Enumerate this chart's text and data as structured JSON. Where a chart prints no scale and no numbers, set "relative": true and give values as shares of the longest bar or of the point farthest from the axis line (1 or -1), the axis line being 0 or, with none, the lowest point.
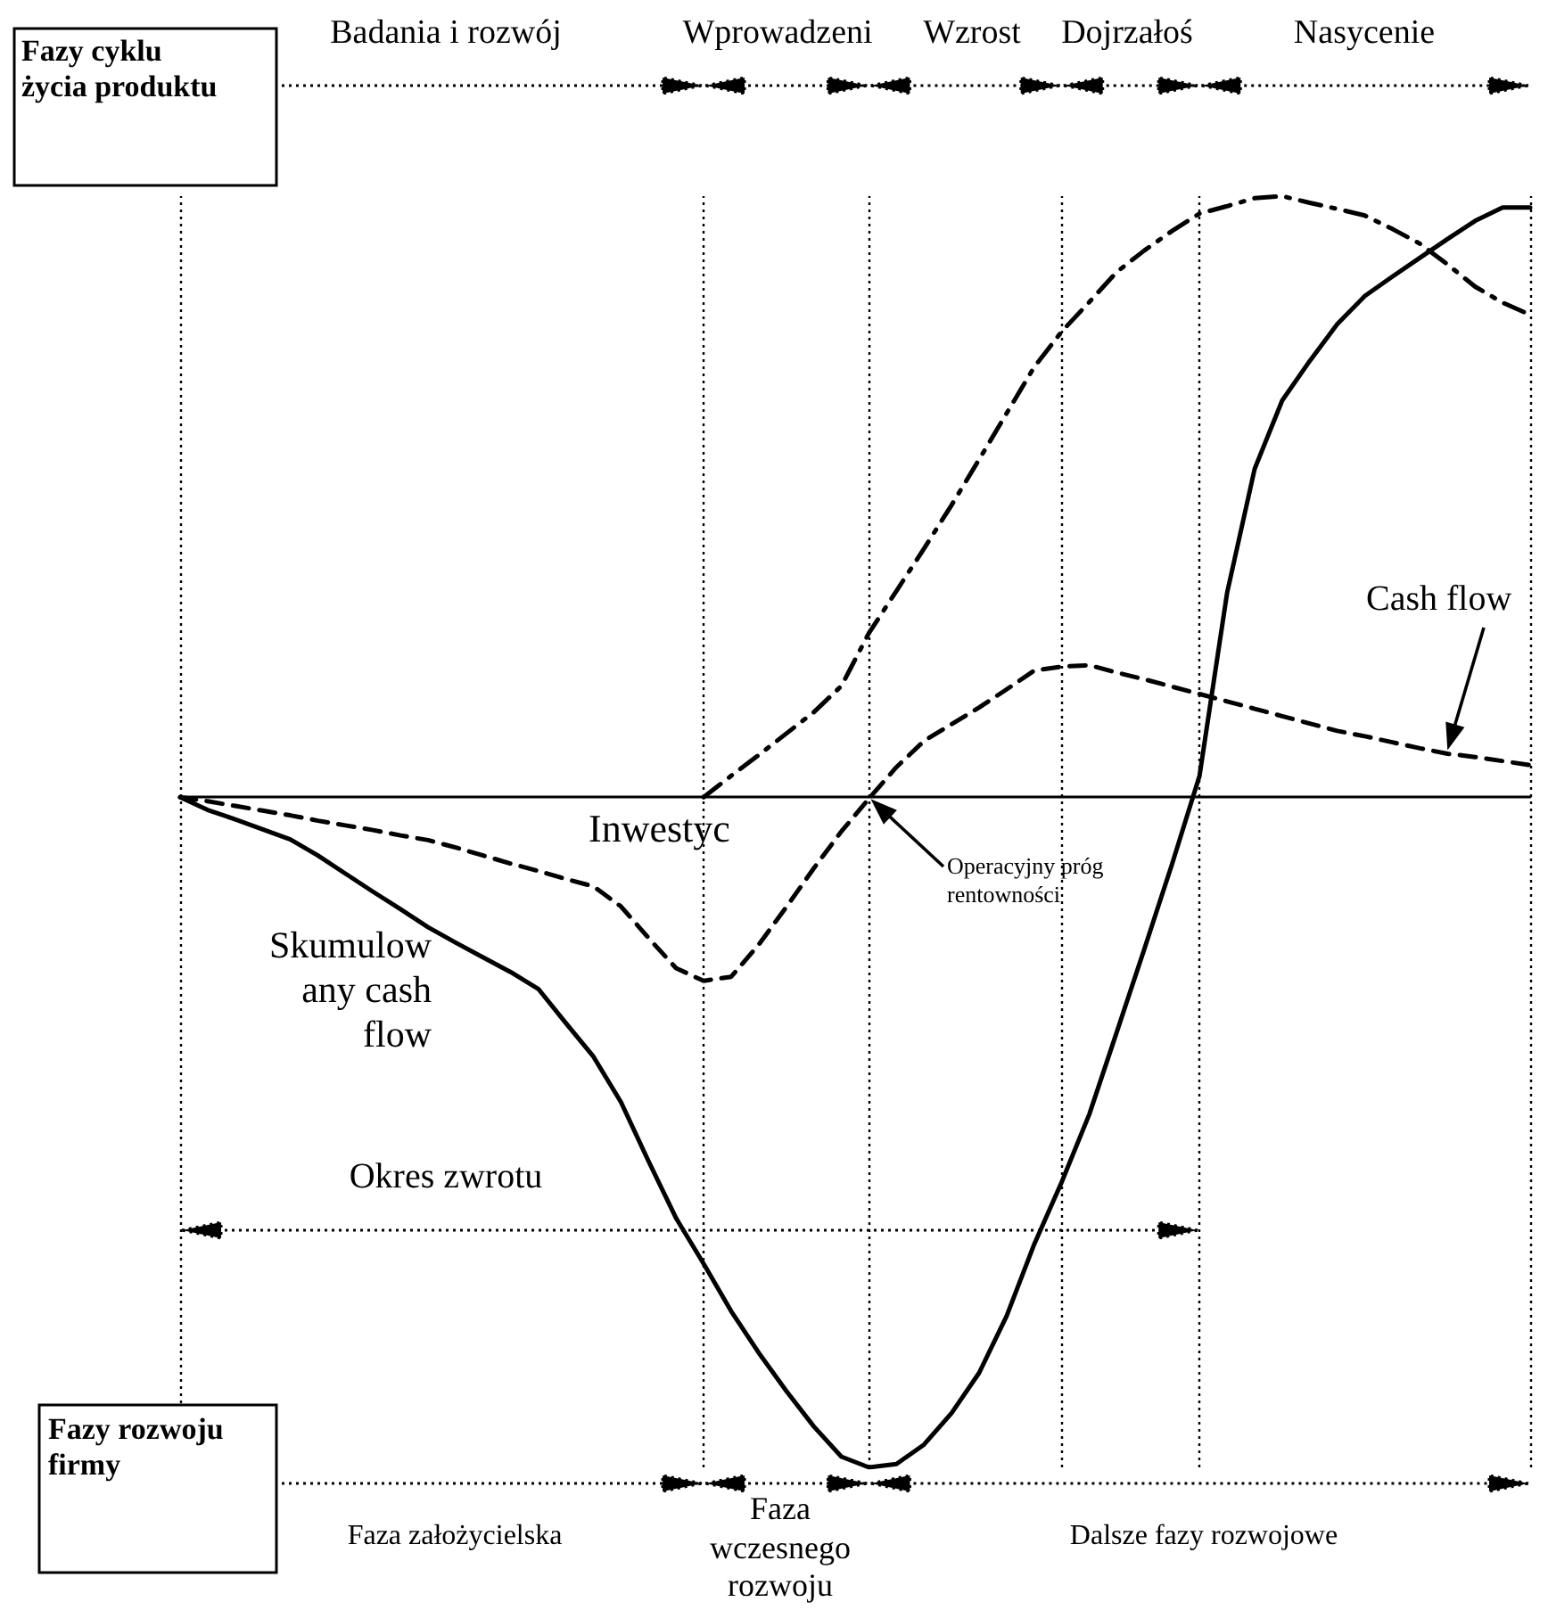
{
  "chart_data": {
    "type": "line",
    "relative": true,
    "marker": "none",
    "grid": true,
    "categories": [
      null,
      null,
      null,
      null,
      null,
      null,
      null,
      null,
      null,
      null,
      null,
      null,
      null,
      null,
      null,
      null,
      null,
      null,
      null,
      null,
      null,
      null,
      null,
      null,
      null,
      null,
      null,
      null,
      null,
      null,
      null,
      null,
      null,
      null,
      null,
      null,
      null,
      null,
      null,
      null,
      null,
      null,
      null,
      null,
      null,
      null,
      null,
      null,
      null,
      null
    ],
    "series": [
      {
        "name": "Skumulow any cash flow",
        "color": "#000000",
        "line_style": "solid",
        "values": [
          0,
          -0.019,
          -0.033,
          -0.048,
          -0.063,
          -0.087,
          -0.114,
          -0.141,
          -0.167,
          -0.194,
          -0.217,
          -0.239,
          -0.261,
          -0.286,
          -0.337,
          -0.387,
          -0.455,
          -0.543,
          -0.628,
          -0.696,
          -0.767,
          -0.829,
          -0.886,
          -0.939,
          -0.984,
          -1,
          -0.995,
          -0.966,
          -0.919,
          -0.859,
          -0.774,
          -0.667,
          -0.574,
          -0.473,
          -0.35,
          -0.226,
          -0.1,
          0.032,
          0.305,
          0.49,
          0.592,
          0.651,
          0.706,
          0.748,
          0.777,
          0.805,
          0.833,
          0.86,
          0.88,
          0.88
        ]
      },
      {
        "name": "Cash flow",
        "color": "#000000",
        "line_style": "dashed",
        "values": [
          0,
          -0.006,
          -0.013,
          -0.02,
          -0.027,
          -0.035,
          -0.042,
          -0.049,
          -0.057,
          -0.064,
          -0.075,
          -0.087,
          -0.099,
          -0.11,
          -0.122,
          -0.133,
          -0.163,
          -0.21,
          -0.255,
          -0.274,
          -0.268,
          -0.22,
          -0.164,
          -0.106,
          -0.051,
          -0.002,
          0.045,
          0.084,
          0.109,
          0.134,
          0.161,
          0.189,
          0.195,
          0.197,
          0.186,
          0.176,
          0.165,
          0.154,
          0.143,
          0.132,
          0.121,
          0.11,
          0.099,
          0.091,
          0.082,
          0.073,
          0.065,
          0.06,
          0.054,
          0.048
        ]
      },
      {
        "color": "#000000",
        "line_style": "dashdot",
        "values": [
          null,
          null,
          null,
          null,
          null,
          null,
          null,
          null,
          null,
          null,
          null,
          null,
          null,
          null,
          null,
          null,
          null,
          null,
          null,
          0,
          0.032,
          0.063,
          0.095,
          0.127,
          0.166,
          0.245,
          0.308,
          0.371,
          0.436,
          0.504,
          0.573,
          0.642,
          0.695,
          0.739,
          0.784,
          0.816,
          0.845,
          0.871,
          0.882,
          0.894,
          0.897,
          0.887,
          0.878,
          0.868,
          0.848,
          0.826,
          0.795,
          0.762,
          0.738,
          0.72
        ]
      }
    ],
    "annotations": [
      "Fazy cyklu życia produktu",
      "Badania i rozwój",
      "Wprowadzeni",
      "Wzrost",
      "Dojrzałoś",
      "Nasycenie",
      "Fazy rozwoju firmy",
      "Faza założycielska",
      "Faza wczesnego rozwoju",
      "Dalsze fazy rozwojowe",
      "Inwestyc",
      "Operacyjny próg rentowności",
      "Okres zwrotu"
    ]
  }
}
